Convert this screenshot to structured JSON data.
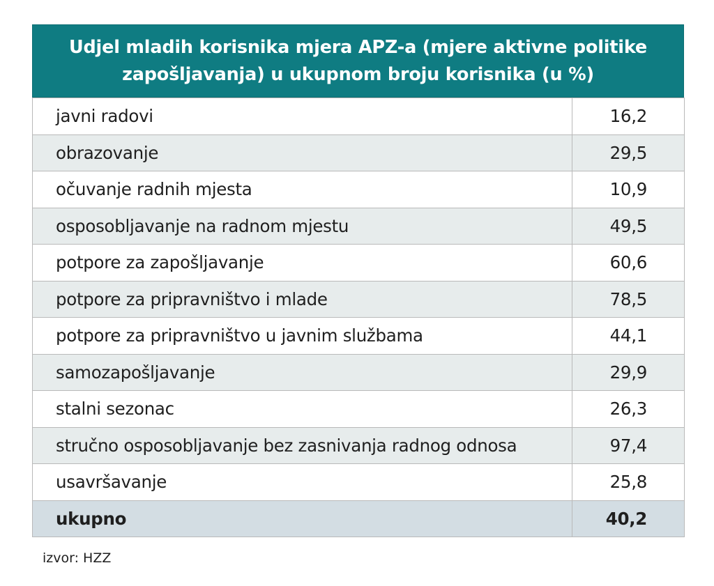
{
  "chart_data": {
    "type": "table",
    "title": "Udjel mladih korisnika mjera APZ-a (mjere aktivne politike zapošljavanja) u ukupnom broju korisnika (u %)",
    "columns": [
      "",
      ""
    ],
    "rows": [
      {
        "label": "javni radovi",
        "value": "16,2"
      },
      {
        "label": "obrazovanje",
        "value": "29,5"
      },
      {
        "label": "očuvanje radnih mjesta",
        "value": "10,9"
      },
      {
        "label": "osposobljavanje na radnom mjestu",
        "value": "49,5"
      },
      {
        "label": "potpore za zapošljavanje",
        "value": "60,6"
      },
      {
        "label": "potpore za pripravništvo i mlade",
        "value": "78,5"
      },
      {
        "label": "potpore za pripravništvo u javnim službama",
        "value": "44,1"
      },
      {
        "label": "samozapošljavanje",
        "value": "29,9"
      },
      {
        "label": "stalni sezonac",
        "value": "26,3"
      },
      {
        "label": "stručno osposobljavanje bez zasnivanja radnog odnosa",
        "value": "97,4"
      },
      {
        "label": "usavršavanje",
        "value": "25,8"
      }
    ],
    "total": {
      "label": "ukupno",
      "value": "40,2"
    },
    "source": "izvor: HZZ"
  },
  "colors": {
    "header_bg": "#0f7c82",
    "header_text": "#ffffff",
    "row_alt_bg": "#e7ecec",
    "total_bg": "#d3dde3",
    "border": "#b9b9b9"
  }
}
